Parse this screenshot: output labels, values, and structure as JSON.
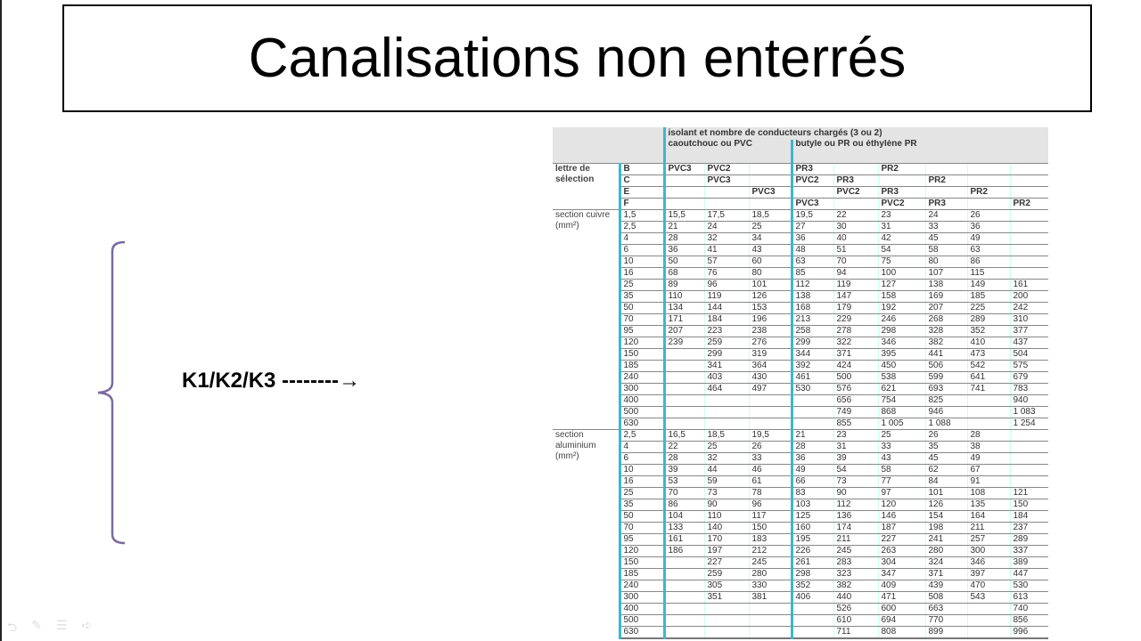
{
  "title": "Canalisations non enterrés",
  "annotation": "K1/K2/K3 --------→",
  "colors": {
    "bracket": "#7a6aa0",
    "table_divider": "#3bb8d0"
  },
  "table": {
    "header_top": "isolant et nombre de conducteurs chargés (3 ou 2)",
    "group_pvc": "caoutchouc ou PVC",
    "group_pr": "butyle ou PR ou éthylène PR",
    "selection_label": "lettre de sélection",
    "letter_rows": [
      {
        "letter": "B",
        "cells": [
          "PVC3",
          "PVC2",
          "",
          "PR3",
          "",
          "PR2",
          "",
          "",
          ""
        ]
      },
      {
        "letter": "C",
        "cells": [
          "",
          "PVC3",
          "",
          "PVC2",
          "PR3",
          "",
          "PR2",
          "",
          ""
        ]
      },
      {
        "letter": "E",
        "cells": [
          "",
          "",
          "PVC3",
          "",
          "PVC2",
          "PR3",
          "",
          "PR2",
          ""
        ]
      },
      {
        "letter": "F",
        "cells": [
          "",
          "",
          "",
          "PVC3",
          "",
          "PVC2",
          "PR3",
          "",
          "PR2"
        ]
      }
    ],
    "copper_label": "section cuivre (mm²)",
    "copper_rows": [
      [
        "1,5",
        "15,5",
        "17,5",
        "18,5",
        "19,5",
        "22",
        "23",
        "24",
        "26",
        ""
      ],
      [
        "2,5",
        "21",
        "24",
        "25",
        "27",
        "30",
        "31",
        "33",
        "36",
        ""
      ],
      [
        "4",
        "28",
        "32",
        "34",
        "36",
        "40",
        "42",
        "45",
        "49",
        ""
      ],
      [
        "6",
        "36",
        "41",
        "43",
        "48",
        "51",
        "54",
        "58",
        "63",
        ""
      ],
      [
        "10",
        "50",
        "57",
        "60",
        "63",
        "70",
        "75",
        "80",
        "86",
        ""
      ],
      [
        "16",
        "68",
        "76",
        "80",
        "85",
        "94",
        "100",
        "107",
        "115",
        ""
      ],
      [
        "25",
        "89",
        "96",
        "101",
        "112",
        "119",
        "127",
        "138",
        "149",
        "161"
      ],
      [
        "35",
        "110",
        "119",
        "126",
        "138",
        "147",
        "158",
        "169",
        "185",
        "200"
      ],
      [
        "50",
        "134",
        "144",
        "153",
        "168",
        "179",
        "192",
        "207",
        "225",
        "242"
      ],
      [
        "70",
        "171",
        "184",
        "196",
        "213",
        "229",
        "246",
        "268",
        "289",
        "310"
      ],
      [
        "95",
        "207",
        "223",
        "238",
        "258",
        "278",
        "298",
        "328",
        "352",
        "377"
      ],
      [
        "120",
        "239",
        "259",
        "276",
        "299",
        "322",
        "346",
        "382",
        "410",
        "437"
      ],
      [
        "150",
        "",
        "299",
        "319",
        "344",
        "371",
        "395",
        "441",
        "473",
        "504"
      ],
      [
        "185",
        "",
        "341",
        "364",
        "392",
        "424",
        "450",
        "506",
        "542",
        "575"
      ],
      [
        "240",
        "",
        "403",
        "430",
        "461",
        "500",
        "538",
        "599",
        "641",
        "679"
      ],
      [
        "300",
        "",
        "464",
        "497",
        "530",
        "576",
        "621",
        "693",
        "741",
        "783"
      ],
      [
        "400",
        "",
        "",
        "",
        "",
        "656",
        "754",
        "825",
        "",
        "940"
      ],
      [
        "500",
        "",
        "",
        "",
        "",
        "749",
        "868",
        "946",
        "",
        "1 083"
      ],
      [
        "630",
        "",
        "",
        "",
        "",
        "855",
        "1 005",
        "1 088",
        "",
        "1 254"
      ]
    ],
    "aluminium_label": "section aluminium (mm²)",
    "aluminium_rows": [
      [
        "2,5",
        "16,5",
        "18,5",
        "19,5",
        "21",
        "23",
        "25",
        "26",
        "28",
        ""
      ],
      [
        "4",
        "22",
        "25",
        "26",
        "28",
        "31",
        "33",
        "35",
        "38",
        ""
      ],
      [
        "6",
        "28",
        "32",
        "33",
        "36",
        "39",
        "43",
        "45",
        "49",
        ""
      ],
      [
        "10",
        "39",
        "44",
        "46",
        "49",
        "54",
        "58",
        "62",
        "67",
        ""
      ],
      [
        "16",
        "53",
        "59",
        "61",
        "66",
        "73",
        "77",
        "84",
        "91",
        ""
      ],
      [
        "25",
        "70",
        "73",
        "78",
        "83",
        "90",
        "97",
        "101",
        "108",
        "121"
      ],
      [
        "35",
        "86",
        "90",
        "96",
        "103",
        "112",
        "120",
        "126",
        "135",
        "150"
      ],
      [
        "50",
        "104",
        "110",
        "117",
        "125",
        "136",
        "146",
        "154",
        "164",
        "184"
      ],
      [
        "70",
        "133",
        "140",
        "150",
        "160",
        "174",
        "187",
        "198",
        "211",
        "237"
      ],
      [
        "95",
        "161",
        "170",
        "183",
        "195",
        "211",
        "227",
        "241",
        "257",
        "289"
      ],
      [
        "120",
        "186",
        "197",
        "212",
        "226",
        "245",
        "263",
        "280",
        "300",
        "337"
      ],
      [
        "150",
        "",
        "227",
        "245",
        "261",
        "283",
        "304",
        "324",
        "346",
        "389"
      ],
      [
        "185",
        "",
        "259",
        "280",
        "298",
        "323",
        "347",
        "371",
        "397",
        "447"
      ],
      [
        "240",
        "",
        "305",
        "330",
        "352",
        "382",
        "409",
        "439",
        "470",
        "530"
      ],
      [
        "300",
        "",
        "351",
        "381",
        "406",
        "440",
        "471",
        "508",
        "543",
        "613"
      ],
      [
        "400",
        "",
        "",
        "",
        "",
        "526",
        "600",
        "663",
        "",
        "740"
      ],
      [
        "500",
        "",
        "",
        "",
        "",
        "610",
        "694",
        "770",
        "",
        "856"
      ],
      [
        "630",
        "",
        "",
        "",
        "",
        "711",
        "808",
        "899",
        "",
        "996"
      ]
    ]
  }
}
